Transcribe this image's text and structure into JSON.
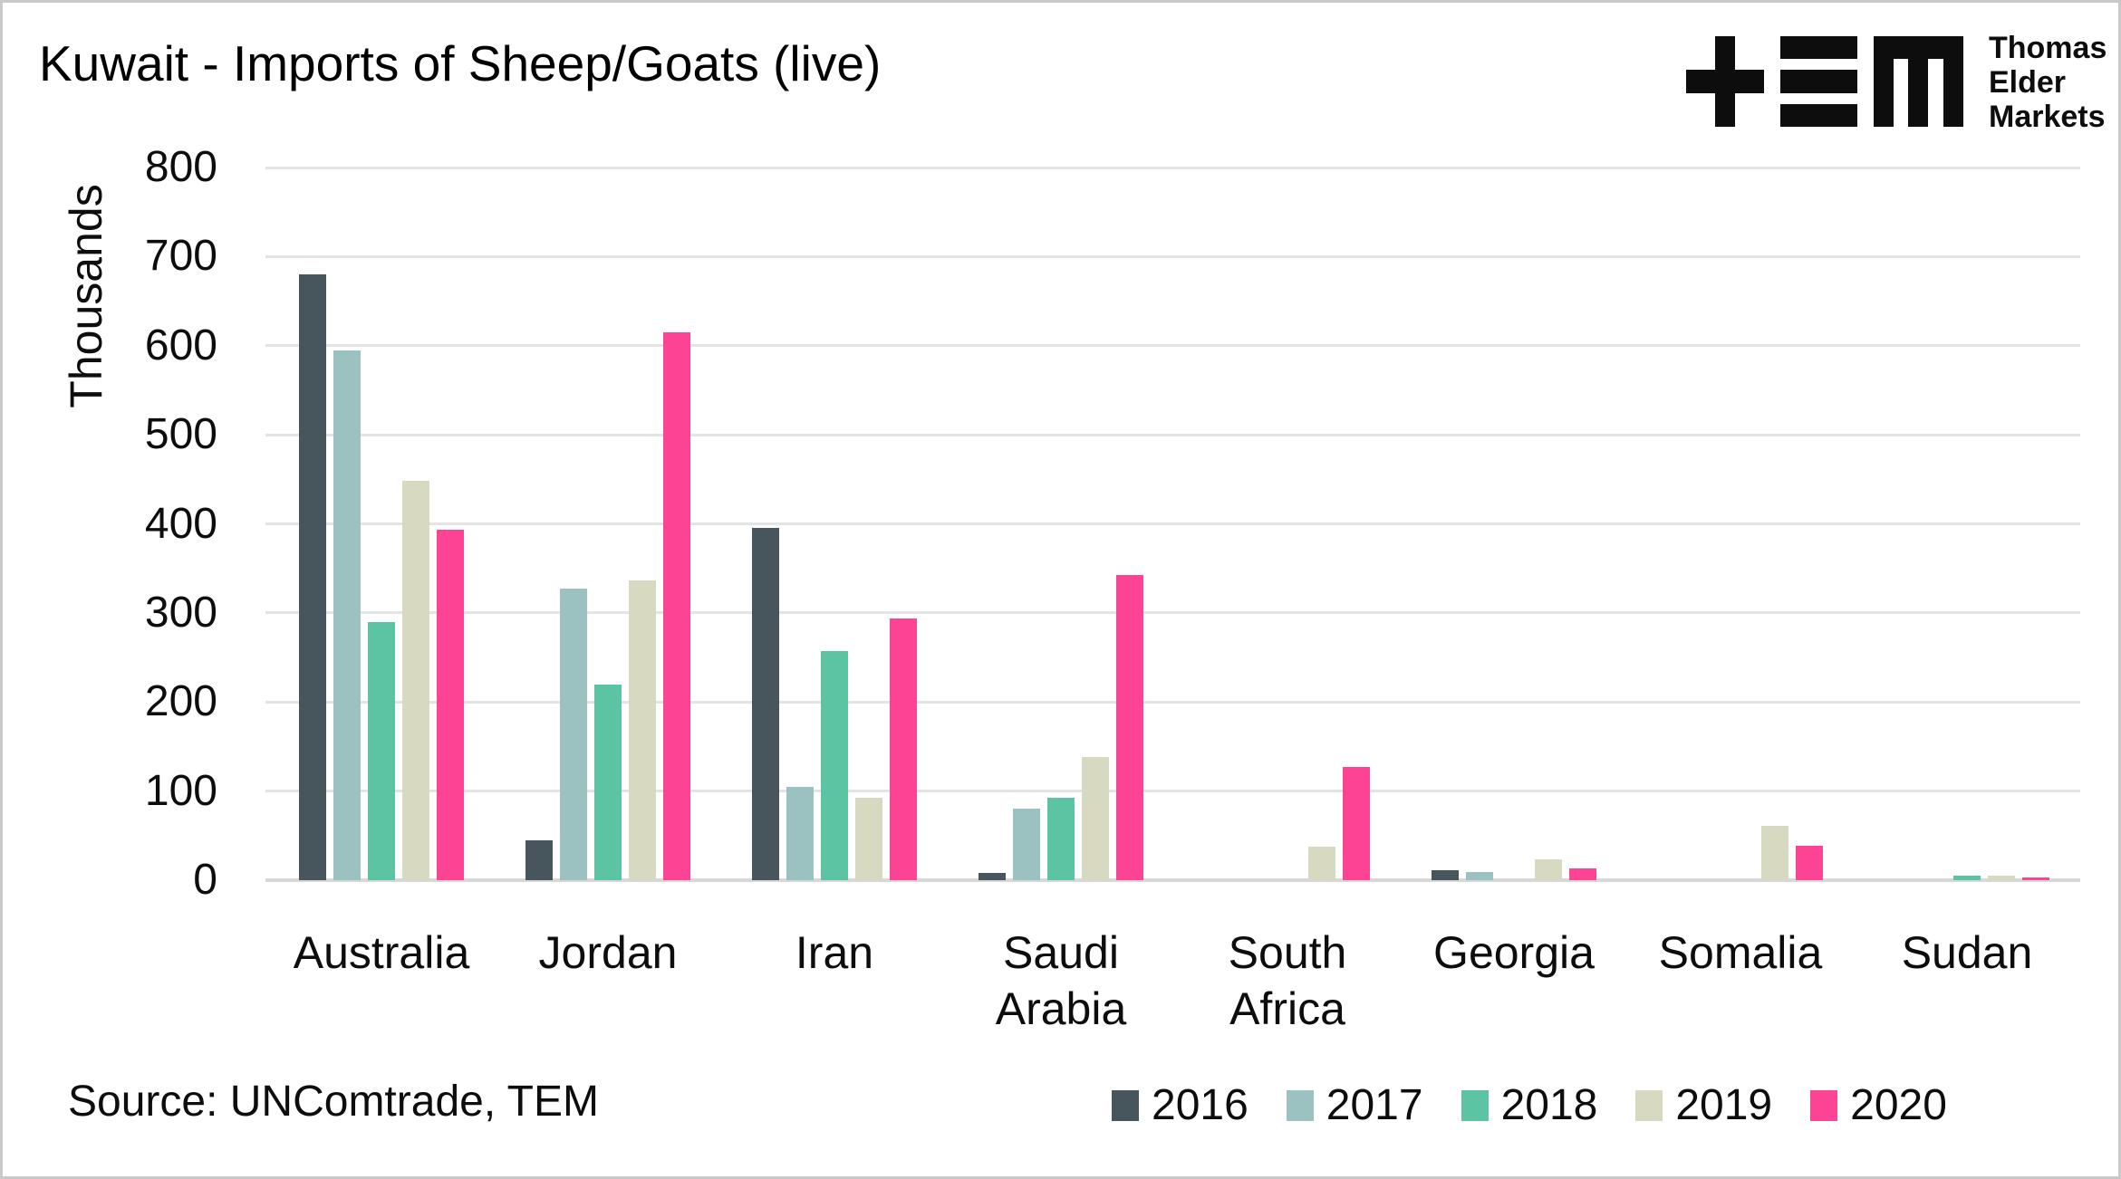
{
  "title": "Kuwait - Imports of Sheep/Goats (live)",
  "source": "Source: UNComtrade, TEM",
  "logo": {
    "lines": [
      "Thomas",
      "Elder",
      "Markets"
    ]
  },
  "chart_data": {
    "type": "bar",
    "title": "Kuwait - Imports of Sheep/Goats (live)",
    "xlabel": "",
    "ylabel": "Thousands",
    "ylim": [
      0,
      800
    ],
    "yticks": [
      0,
      100,
      200,
      300,
      400,
      500,
      600,
      700,
      800
    ],
    "grid": true,
    "legend_position": "bottom-right",
    "categories": [
      "Australia",
      "Jordan",
      "Iran",
      "Saudi Arabia",
      "South Africa",
      "Georgia",
      "Somalia",
      "Sudan"
    ],
    "series": [
      {
        "name": "2016",
        "color": "#47565C",
        "values": [
          680,
          45,
          395,
          8,
          0,
          11,
          0,
          0
        ]
      },
      {
        "name": "2017",
        "color": "#9BC2C1",
        "values": [
          595,
          327,
          105,
          80,
          0,
          9,
          0,
          0
        ]
      },
      {
        "name": "2018",
        "color": "#5CC4A2",
        "values": [
          290,
          220,
          257,
          92,
          0,
          0,
          0,
          5
        ]
      },
      {
        "name": "2019",
        "color": "#D8D9C1",
        "values": [
          448,
          336,
          92,
          138,
          38,
          23,
          61,
          5
        ]
      },
      {
        "name": "2020",
        "color": "#FC4394",
        "values": [
          393,
          615,
          294,
          343,
          127,
          13,
          39,
          2
        ]
      }
    ],
    "colors": {
      "gridline": "#e4e4e4",
      "axis_line": "#d7d7d7",
      "text": "#0d0d0d"
    }
  }
}
